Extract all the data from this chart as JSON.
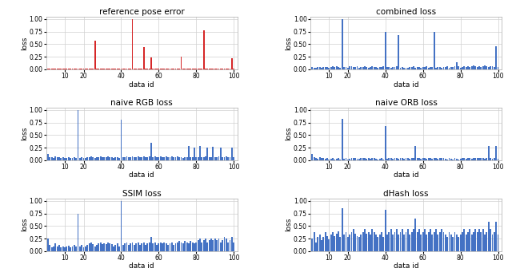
{
  "titles": [
    "reference pose error",
    "combined loss",
    "naive RGB loss",
    "naive ORB loss",
    "SSIM loss",
    "dHash loss"
  ],
  "xlabel": "data id",
  "ylabel": "loss",
  "n_points": 100,
  "bar_color_ref": "#d62728",
  "bar_color_blue": "#4472c4",
  "xticks": [
    10,
    20,
    40,
    60,
    80,
    100
  ],
  "yticks": [
    0.0,
    0.25,
    0.5,
    0.75,
    1.0
  ],
  "ref_pose_error": [
    0.01,
    0.01,
    0.01,
    0.01,
    0.01,
    0.01,
    0.01,
    0.01,
    0.01,
    0.01,
    0.01,
    0.01,
    0.01,
    0.01,
    0.01,
    0.01,
    0.01,
    0.01,
    0.01,
    0.01,
    0.01,
    0.01,
    0.01,
    0.01,
    0.01,
    0.57,
    0.01,
    0.01,
    0.01,
    0.01,
    0.01,
    0.01,
    0.01,
    0.01,
    0.01,
    0.01,
    0.01,
    0.01,
    0.01,
    0.01,
    0.01,
    0.01,
    0.01,
    0.01,
    0.01,
    1.0,
    0.01,
    0.01,
    0.01,
    0.01,
    0.01,
    0.45,
    0.01,
    0.01,
    0.01,
    0.24,
    0.01,
    0.01,
    0.01,
    0.01,
    0.01,
    0.01,
    0.01,
    0.01,
    0.01,
    0.01,
    0.01,
    0.01,
    0.01,
    0.01,
    0.01,
    0.26,
    0.01,
    0.01,
    0.01,
    0.01,
    0.01,
    0.01,
    0.01,
    0.01,
    0.01,
    0.01,
    0.01,
    0.77,
    0.01,
    0.01,
    0.01,
    0.01,
    0.01,
    0.01,
    0.01,
    0.01,
    0.01,
    0.01,
    0.01,
    0.01,
    0.01,
    0.01,
    0.22,
    0.01
  ],
  "combined_loss": [
    0.04,
    0.03,
    0.03,
    0.04,
    0.04,
    0.03,
    0.05,
    0.04,
    0.04,
    0.03,
    0.05,
    0.06,
    0.04,
    0.06,
    0.05,
    0.03,
    1.0,
    0.04,
    0.05,
    0.03,
    0.06,
    0.07,
    0.05,
    0.04,
    0.06,
    0.03,
    0.04,
    0.05,
    0.06,
    0.04,
    0.03,
    0.05,
    0.06,
    0.04,
    0.05,
    0.03,
    0.04,
    0.05,
    0.06,
    0.75,
    0.04,
    0.05,
    0.03,
    0.04,
    0.05,
    0.06,
    0.68,
    0.03,
    0.04,
    0.03,
    0.03,
    0.03,
    0.04,
    0.05,
    0.06,
    0.03,
    0.04,
    0.05,
    0.03,
    0.04,
    0.05,
    0.06,
    0.03,
    0.04,
    0.05,
    0.75,
    0.03,
    0.04,
    0.05,
    0.03,
    0.04,
    0.05,
    0.06,
    0.03,
    0.04,
    0.05,
    0.06,
    0.14,
    0.07,
    0.03,
    0.05,
    0.06,
    0.04,
    0.06,
    0.05,
    0.07,
    0.08,
    0.07,
    0.05,
    0.06,
    0.05,
    0.07,
    0.08,
    0.06,
    0.05,
    0.07,
    0.06,
    0.05,
    0.46,
    0.05
  ],
  "naive_rgb_loss": [
    0.13,
    0.07,
    0.06,
    0.05,
    0.08,
    0.06,
    0.07,
    0.05,
    0.06,
    0.04,
    0.05,
    0.06,
    0.04,
    0.05,
    0.06,
    0.04,
    1.0,
    0.05,
    0.06,
    0.04,
    0.05,
    0.06,
    0.07,
    0.08,
    0.06,
    0.05,
    0.06,
    0.07,
    0.08,
    0.06,
    0.07,
    0.06,
    0.08,
    0.07,
    0.06,
    0.05,
    0.06,
    0.07,
    0.05,
    0.8,
    0.06,
    0.07,
    0.08,
    0.06,
    0.07,
    0.08,
    0.06,
    0.07,
    0.08,
    0.06,
    0.07,
    0.08,
    0.06,
    0.07,
    0.08,
    0.35,
    0.07,
    0.08,
    0.06,
    0.07,
    0.08,
    0.06,
    0.07,
    0.08,
    0.06,
    0.07,
    0.08,
    0.06,
    0.07,
    0.08,
    0.07,
    0.06,
    0.05,
    0.07,
    0.06,
    0.28,
    0.07,
    0.06,
    0.26,
    0.06,
    0.07,
    0.28,
    0.06,
    0.07,
    0.08,
    0.26,
    0.06,
    0.07,
    0.27,
    0.06,
    0.07,
    0.08,
    0.26,
    0.06,
    0.07,
    0.08,
    0.06,
    0.07,
    0.26,
    0.06
  ],
  "naive_orb_loss": [
    0.13,
    0.07,
    0.04,
    0.03,
    0.06,
    0.04,
    0.05,
    0.03,
    0.04,
    0.02,
    0.03,
    0.04,
    0.02,
    0.03,
    0.04,
    0.02,
    0.82,
    0.03,
    0.04,
    0.02,
    0.03,
    0.04,
    0.05,
    0.04,
    0.03,
    0.03,
    0.04,
    0.05,
    0.04,
    0.03,
    0.04,
    0.03,
    0.05,
    0.04,
    0.03,
    0.02,
    0.03,
    0.04,
    0.02,
    0.68,
    0.03,
    0.04,
    0.05,
    0.03,
    0.04,
    0.05,
    0.03,
    0.04,
    0.05,
    0.03,
    0.04,
    0.05,
    0.03,
    0.04,
    0.05,
    0.28,
    0.04,
    0.05,
    0.03,
    0.04,
    0.05,
    0.03,
    0.04,
    0.05,
    0.03,
    0.04,
    0.05,
    0.03,
    0.04,
    0.05,
    0.04,
    0.03,
    0.02,
    0.04,
    0.03,
    0.02,
    0.04,
    0.03,
    0.02,
    0.03,
    0.04,
    0.05,
    0.03,
    0.04,
    0.05,
    0.03,
    0.04,
    0.05,
    0.04,
    0.05,
    0.04,
    0.05,
    0.03,
    0.04,
    0.28,
    0.05,
    0.03,
    0.04,
    0.28,
    0.03
  ],
  "ssim_loss": [
    0.25,
    0.12,
    0.08,
    0.1,
    0.15,
    0.1,
    0.12,
    0.08,
    0.1,
    0.07,
    0.09,
    0.11,
    0.08,
    0.1,
    0.12,
    0.09,
    0.75,
    0.1,
    0.12,
    0.08,
    0.1,
    0.12,
    0.15,
    0.18,
    0.14,
    0.1,
    0.12,
    0.15,
    0.18,
    0.14,
    0.15,
    0.14,
    0.18,
    0.15,
    0.14,
    0.1,
    0.12,
    0.15,
    0.1,
    1.0,
    0.12,
    0.15,
    0.18,
    0.12,
    0.15,
    0.18,
    0.12,
    0.15,
    0.18,
    0.12,
    0.15,
    0.18,
    0.12,
    0.15,
    0.18,
    0.28,
    0.15,
    0.18,
    0.12,
    0.15,
    0.18,
    0.15,
    0.18,
    0.15,
    0.12,
    0.15,
    0.18,
    0.12,
    0.15,
    0.18,
    0.2,
    0.18,
    0.15,
    0.2,
    0.18,
    0.15,
    0.2,
    0.18,
    0.15,
    0.18,
    0.22,
    0.25,
    0.18,
    0.22,
    0.25,
    0.18,
    0.22,
    0.25,
    0.22,
    0.25,
    0.22,
    0.25,
    0.18,
    0.22,
    0.28,
    0.25,
    0.18,
    0.22,
    0.28,
    0.18
  ],
  "dhash_loss": [
    0.25,
    0.38,
    0.18,
    0.28,
    0.33,
    0.22,
    0.28,
    0.38,
    0.3,
    0.24,
    0.33,
    0.38,
    0.3,
    0.35,
    0.4,
    0.28,
    0.85,
    0.33,
    0.38,
    0.28,
    0.33,
    0.38,
    0.44,
    0.35,
    0.3,
    0.28,
    0.33,
    0.38,
    0.44,
    0.35,
    0.38,
    0.33,
    0.44,
    0.38,
    0.33,
    0.28,
    0.33,
    0.38,
    0.28,
    0.82,
    0.33,
    0.38,
    0.44,
    0.33,
    0.38,
    0.44,
    0.33,
    0.38,
    0.44,
    0.33,
    0.38,
    0.44,
    0.33,
    0.38,
    0.44,
    0.65,
    0.38,
    0.44,
    0.33,
    0.38,
    0.44,
    0.33,
    0.38,
    0.44,
    0.33,
    0.38,
    0.44,
    0.33,
    0.38,
    0.44,
    0.38,
    0.33,
    0.28,
    0.38,
    0.33,
    0.28,
    0.38,
    0.33,
    0.28,
    0.33,
    0.38,
    0.44,
    0.33,
    0.38,
    0.44,
    0.33,
    0.38,
    0.44,
    0.38,
    0.44,
    0.38,
    0.44,
    0.33,
    0.38,
    0.58,
    0.44,
    0.33,
    0.38,
    0.58,
    0.33
  ]
}
